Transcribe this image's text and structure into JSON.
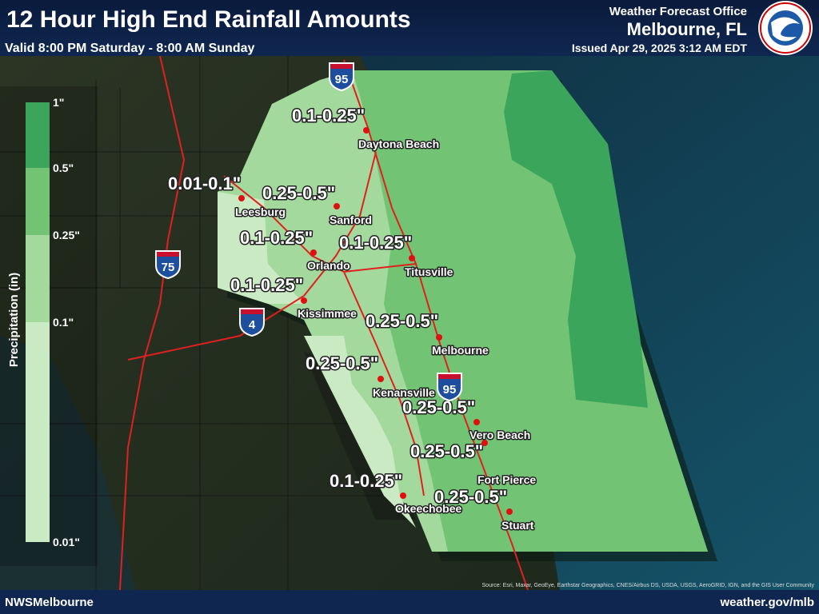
{
  "header": {
    "title": "12 Hour High End Rainfall Amounts",
    "subtitle": "Valid 8:00 PM Saturday - 8:00 AM Sunday",
    "office": "Weather Forecast Office",
    "office_location": "Melbourne, FL",
    "issued": "Issued Apr 29, 2025 3:12 AM EDT"
  },
  "legend": {
    "title": "Precipitation (in)",
    "labels": [
      "1\"",
      "0.5\"",
      "0.25\"",
      "0.1\"",
      "0.01\""
    ],
    "colors": [
      "#3ba55c",
      "#72c374",
      "#a3d99d",
      "#c9eac3"
    ]
  },
  "map": {
    "amounts": [
      "0.1-0.25\"",
      "0.01-0.1\"",
      "0.25-0.5\"",
      "0.1-0.25\"",
      "0.1-0.25\"",
      "0.1-0.25\"",
      "0.25-0.5\"",
      "0.25-0.5\"",
      "0.25-0.5\"",
      "0.25-0.5\"",
      "0.1-0.25\"",
      "0.25-0.5\""
    ],
    "cities": [
      "Daytona Beach",
      "Leesburg",
      "Sanford",
      "Orlando",
      "Titusville",
      "Kissimmee",
      "Melbourne",
      "Kenansville",
      "Vero Beach",
      "Fort Pierce",
      "Okeechobee",
      "Stuart"
    ],
    "shields": [
      "95",
      "75",
      "4",
      "95"
    ]
  },
  "footer": {
    "left": "NWSMelbourne",
    "right": "weather.gov/mlb",
    "source": "Source: Esri, Maxar, GeoEye, Earthstar Geographics, CNES/Airbus DS, USDA, USGS, AeroGRID, IGN, and the GIS User Community"
  }
}
